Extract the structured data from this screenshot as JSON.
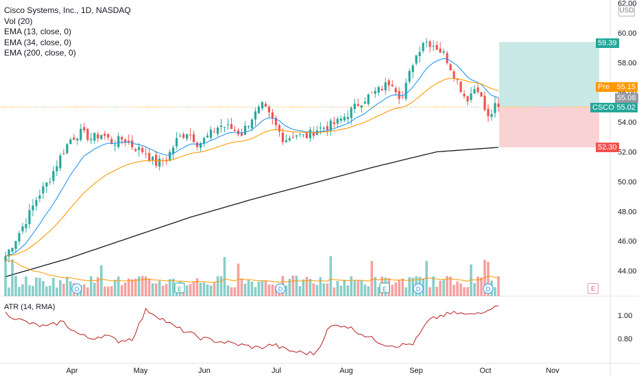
{
  "legend": {
    "title": "Cisco Systems, Inc., 1D, NASDAQ",
    "vol": "Vol (20)",
    "ema13": "EMA (13, close, 0)",
    "ema34": "EMA (34, close, 0)",
    "ema200": "EMA (200, close, 0)"
  },
  "atr_legend": "ATR (14, RMA)",
  "currency": "USD",
  "tags": {
    "target": "59.39",
    "pre_label": "Pre",
    "pre_value": "55.15",
    "last_gray": "55.08",
    "ticker": "CSCO",
    "ticker_value": "55.02",
    "stop": "52.30"
  },
  "colors": {
    "up": "#26a69a",
    "down": "#ef5350",
    "ema13": "#2196f3",
    "ema34": "#ff9800",
    "ema200": "#131722",
    "atr": "#b71c1c",
    "pre": "#ff9800",
    "target_zone": "#b2dfdb",
    "stop_zone": "#f8c8c8"
  },
  "chart_data": {
    "type": "candlestick",
    "y_range": [
      43,
      62
    ],
    "y_ticks": [
      "44.00",
      "46.00",
      "48.00",
      "50.00",
      "52.00",
      "54.00",
      "56.00",
      "58.00",
      "60.00",
      "62.00"
    ],
    "y_tick_values": [
      44,
      46,
      48,
      50,
      52,
      54,
      56,
      58,
      60,
      62
    ],
    "x_ticks": [
      "Apr",
      "May",
      "Jun",
      "Jul",
      "Aug",
      "Sep",
      "Oct",
      "Nov"
    ],
    "close_path": [
      45.0,
      46.2,
      47.5,
      49.0,
      50.0,
      51.5,
      52.8,
      53.3,
      52.9,
      53.2,
      52.6,
      52.9,
      52.3,
      52.0,
      51.2,
      51.5,
      52.8,
      53.4,
      52.5,
      53.1,
      53.8,
      53.6,
      53.2,
      54.3,
      55.1,
      54.0,
      52.8,
      53.2,
      53.0,
      53.5,
      53.7,
      54.0,
      54.6,
      55.3,
      55.8,
      56.2,
      56.8,
      55.5,
      58.0,
      59.5,
      59.2,
      58.5,
      57.0,
      55.5,
      56.5,
      54.2,
      55.4
    ],
    "ema200_path": [
      43.6,
      44.8,
      46.2,
      47.6,
      48.8,
      49.9,
      51.0,
      52.0,
      52.3
    ],
    "atr_ticks": [
      "1.00",
      "0.80"
    ],
    "atr_tick_values": [
      1.0,
      0.8
    ],
    "atr_range": [
      0.62,
      1.08
    ],
    "position": {
      "entry": 55.02,
      "target": 59.39,
      "stop": 52.3
    },
    "earnings_markers": [
      "E",
      "E"
    ],
    "dividend_markers": [
      "D",
      "D",
      "D",
      "D"
    ]
  }
}
